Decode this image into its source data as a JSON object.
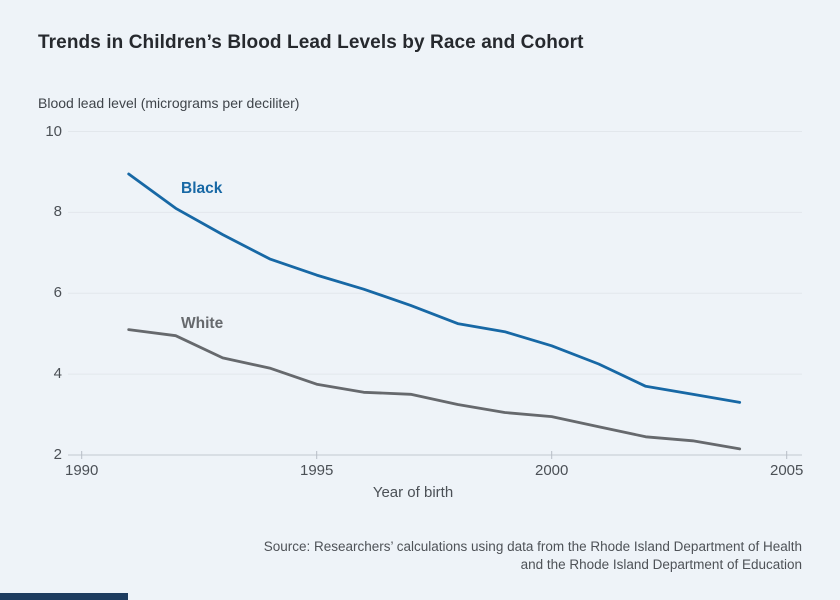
{
  "page": {
    "title": "Trends in Children’s Blood Lead Levels by Race and Cohort",
    "source_line1": "Source: Researchers’ calculations using data from the Rhode Island Department of Health",
    "source_line2": "and the Rhode Island Department of Education"
  },
  "colors": {
    "background": "#eef3f8",
    "title_text": "#26292e",
    "axis_text": "#4b5056",
    "gridline": "#e2e7ec",
    "axis_line": "#c3cad1",
    "tick_mark": "#b7bec6",
    "black_series": "#1768a5",
    "white_series": "#66696d",
    "brand_bar": "#1d3c5f"
  },
  "chart_data": {
    "type": "line",
    "title": "Trends in Children’s Blood Lead Levels by Race and Cohort",
    "y_unit_label": "Blood lead level (micrograms per deciliter)",
    "xlabel": "Year of birth",
    "ylabel": "Blood lead level (micrograms per deciliter)",
    "x": [
      1991,
      1992,
      1993,
      1994,
      1995,
      1996,
      1997,
      1998,
      1999,
      2000,
      2001,
      2002,
      2003,
      2004
    ],
    "series": [
      {
        "name": "Black",
        "color": "#1768a5",
        "values": [
          8.95,
          8.1,
          7.45,
          6.85,
          6.45,
          6.1,
          5.7,
          5.25,
          5.05,
          4.7,
          4.25,
          3.7,
          3.5,
          3.3
        ]
      },
      {
        "name": "White",
        "color": "#66696d",
        "values": [
          5.1,
          4.95,
          4.4,
          4.15,
          3.75,
          3.55,
          3.5,
          3.25,
          3.05,
          2.95,
          2.7,
          2.45,
          2.35,
          2.15
        ]
      }
    ],
    "x_ticks": [
      1990,
      1995,
      2000,
      2005
    ],
    "y_ticks": [
      10,
      8,
      6,
      4,
      2
    ],
    "xlim": [
      1990,
      2005
    ],
    "ylim": [
      2,
      10
    ],
    "grid": "horizontal",
    "legend": "inline-labels"
  }
}
